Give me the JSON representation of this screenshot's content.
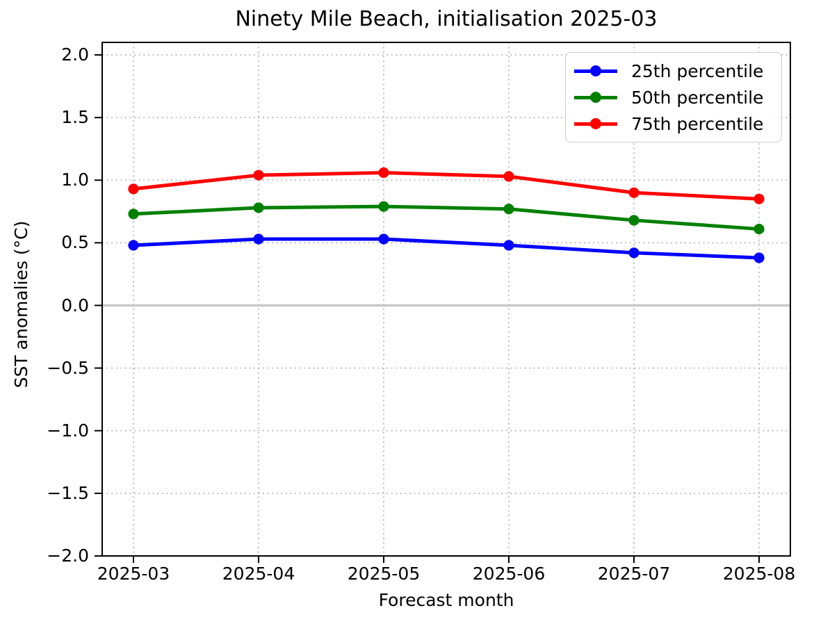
{
  "figure": {
    "background": "#ffffff"
  },
  "chart_data": {
    "type": "line",
    "title": "Ninety Mile Beach, initialisation 2025-03",
    "xlabel": "Forecast month",
    "ylabel": "SST anomalies (°C)",
    "categories": [
      "2025-03",
      "2025-04",
      "2025-05",
      "2025-06",
      "2025-07",
      "2025-08"
    ],
    "series": [
      {
        "name": "25th percentile",
        "color": "#0000ff",
        "values": [
          0.48,
          0.53,
          0.53,
          0.48,
          0.42,
          0.38
        ]
      },
      {
        "name": "50th percentile",
        "color": "#008000",
        "values": [
          0.73,
          0.78,
          0.79,
          0.77,
          0.68,
          0.61
        ]
      },
      {
        "name": "75th percentile",
        "color": "#ff0000",
        "values": [
          0.93,
          1.04,
          1.06,
          1.03,
          0.9,
          0.85
        ]
      }
    ],
    "ylim": [
      -2.0,
      2.1
    ],
    "yticks": [
      -2.0,
      -1.5,
      -1.0,
      -0.5,
      0.0,
      0.5,
      1.0,
      1.5,
      2.0
    ],
    "grid": true,
    "grid_style": "dotted",
    "zero_line": true,
    "legend_position": "upper right",
    "colors": {
      "grid": "#b0b0b0",
      "zero_line": "#c8c8c8",
      "spine": "#000000",
      "legend_border": "#cccccc",
      "text": "#000000"
    }
  }
}
